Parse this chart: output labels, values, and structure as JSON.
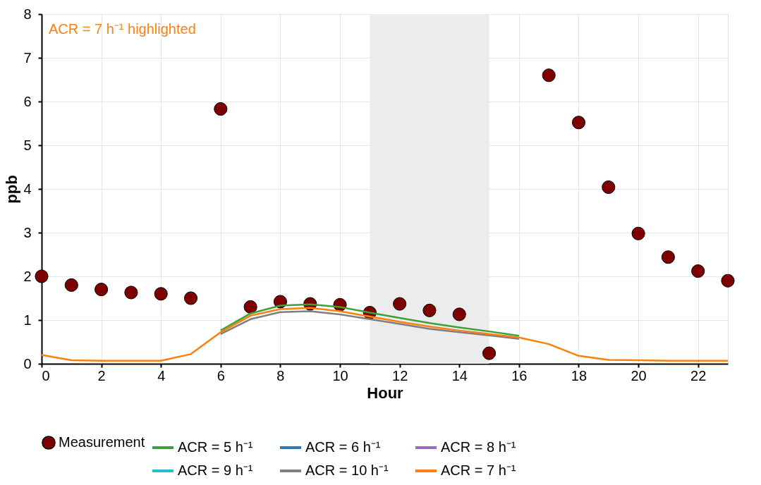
{
  "chart_data": {
    "type": "line",
    "xlabel": "Hour",
    "ylabel": "ppb",
    "x": [
      0,
      1,
      2,
      3,
      4,
      5,
      6,
      7,
      8,
      9,
      10,
      11,
      12,
      13,
      14,
      15,
      16,
      17,
      18,
      19,
      20,
      21,
      22,
      23
    ],
    "series": [
      {
        "name": "ACR = 5 h⁻¹",
        "color": "#3ca03c",
        "values": [
          null,
          null,
          null,
          null,
          null,
          null,
          0.76,
          1.15,
          1.33,
          1.36,
          1.3,
          1.17,
          1.05,
          0.93,
          0.83,
          0.74,
          0.64,
          null,
          null,
          null,
          null,
          null,
          null,
          null
        ]
      },
      {
        "name": "ACR = 6 h⁻¹",
        "color": "#2f7ab5",
        "values": [
          null,
          null,
          null,
          null,
          null,
          null,
          null,
          null,
          null,
          null,
          null,
          null,
          null,
          null,
          null,
          null,
          null,
          null,
          null,
          null,
          null,
          null,
          null,
          null
        ]
      },
      {
        "name": "ACR = 8 h⁻¹",
        "color": "#9a6bc4",
        "values": [
          null,
          null,
          null,
          null,
          null,
          null,
          null,
          null,
          null,
          null,
          null,
          null,
          null,
          null,
          null,
          null,
          null,
          null,
          null,
          null,
          null,
          null,
          null,
          null
        ]
      },
      {
        "name": "ACR = 9 h⁻¹",
        "color": "#27bfcf",
        "values": [
          null,
          null,
          null,
          null,
          null,
          null,
          null,
          null,
          null,
          null,
          null,
          null,
          null,
          null,
          null,
          null,
          null,
          null,
          null,
          null,
          null,
          null,
          null,
          null
        ]
      },
      {
        "name": "ACR = 10 h⁻¹",
        "color": "#7f7f7f",
        "values": [
          null,
          null,
          null,
          null,
          null,
          null,
          0.68,
          1.02,
          1.18,
          1.2,
          1.13,
          1.02,
          0.91,
          0.8,
          0.72,
          0.65,
          0.57,
          null,
          null,
          null,
          null,
          null,
          null,
          null
        ]
      },
      {
        "name": "ACR = 7 h⁻¹",
        "color": "#ff7f0e",
        "values": [
          0.2,
          0.08,
          0.07,
          0.07,
          0.07,
          0.22,
          0.72,
          1.1,
          1.25,
          1.28,
          1.2,
          1.08,
          0.96,
          0.85,
          0.76,
          0.68,
          0.6,
          0.45,
          0.18,
          0.09,
          0.08,
          0.07,
          0.07,
          0.07
        ]
      },
      {
        "name": "Measurement",
        "type": "scatter",
        "marker": "circle",
        "color": "#7f0000",
        "values": [
          2.0,
          1.8,
          1.7,
          1.63,
          1.6,
          1.5,
          5.83,
          1.3,
          1.42,
          1.37,
          1.35,
          1.17,
          1.37,
          1.22,
          1.13,
          0.24,
          null,
          6.6,
          5.52,
          4.04,
          2.98,
          2.44,
          2.12,
          1.9
        ]
      }
    ],
    "bands": [
      {
        "axis": "x",
        "from": 11,
        "to": 15,
        "color": "#ececec"
      }
    ],
    "annotations": [
      "ACR = 7 h⁻¹ highlighted"
    ],
    "xlim": [
      0,
      23
    ],
    "xticks": [
      0,
      2,
      4,
      6,
      8,
      10,
      12,
      14,
      16,
      18,
      20,
      22
    ],
    "ylim": [
      0,
      8
    ],
    "yticks": [
      0,
      1,
      2,
      3,
      4,
      5,
      6,
      7,
      8
    ],
    "grid": true,
    "legend": "bottom"
  }
}
